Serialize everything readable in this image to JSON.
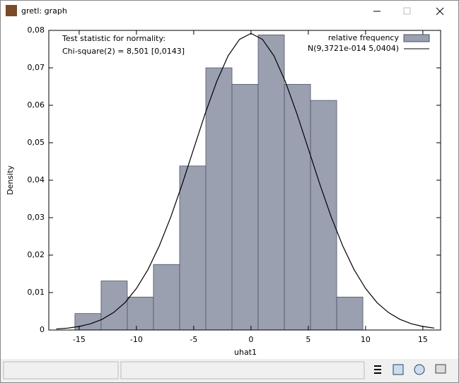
{
  "window": {
    "title": "gretl: graph"
  },
  "chart_data": {
    "type": "histogram",
    "annotations": [
      "Test statistic for normality:",
      "Chi-square(2) = 8,501 [0,0143]"
    ],
    "xlabel": "uhat1",
    "ylabel": "Density",
    "bins": [
      -15.37,
      -13.085,
      -10.8,
      -8.515,
      -6.23,
      -3.945,
      -1.66,
      0.625,
      2.91,
      5.195,
      7.48,
      9.765
    ],
    "series": [
      {
        "name": "relative frequency",
        "color": "#9aa0b0",
        "values": [
          0.0044,
          0.0131,
          0.0088,
          0.0175,
          0.0438,
          0.07,
          0.0656,
          0.0788,
          0.0656,
          0.0613,
          0.0088
        ]
      },
      {
        "name": "N(9,3721e-014 5,0404)",
        "color": "#000000",
        "x": [
          -17,
          -16,
          -15,
          -14,
          -13,
          -12,
          -11,
          -10,
          -9,
          -8,
          -7,
          -6,
          -5,
          -4,
          -3,
          -2,
          -1,
          0,
          1,
          2,
          3,
          4,
          5,
          6,
          7,
          8,
          9,
          10,
          11,
          12,
          13,
          14,
          15,
          16
        ],
        "values": [
          0.00027,
          0.00051,
          0.00094,
          0.00167,
          0.00284,
          0.00466,
          0.0073,
          0.0111,
          0.0161,
          0.0225,
          0.0302,
          0.039,
          0.0484,
          0.0578,
          0.0663,
          0.0732,
          0.0776,
          0.0792,
          0.0776,
          0.0732,
          0.0663,
          0.0578,
          0.0484,
          0.039,
          0.0302,
          0.0225,
          0.0161,
          0.0111,
          0.0073,
          0.00466,
          0.00284,
          0.00167,
          0.00094,
          0.00051
        ]
      }
    ],
    "xlim": [
      -17.65,
      16.55
    ],
    "ylim": [
      0,
      0.08
    ],
    "xticks": [
      -15,
      -10,
      -5,
      0,
      5,
      10,
      15
    ],
    "yticks": [
      0,
      {
        "value": 0.01,
        "label": "0,01"
      },
      {
        "value": 0.02,
        "label": "0,02"
      },
      {
        "value": 0.03,
        "label": "0,03"
      },
      {
        "value": 0.04,
        "label": "0,04"
      },
      {
        "value": 0.05,
        "label": "0,05"
      },
      {
        "value": 0.06,
        "label": "0,06"
      },
      {
        "value": 0.07,
        "label": "0,07"
      },
      {
        "value": 0.08,
        "label": "0,08"
      }
    ],
    "legend": "upper right"
  }
}
